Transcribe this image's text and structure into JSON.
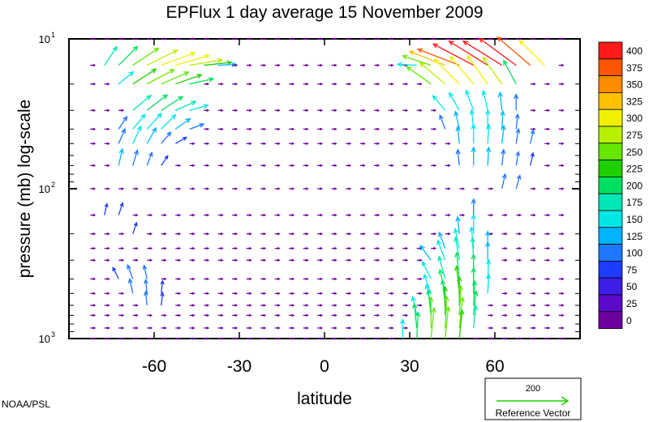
{
  "chart_data": {
    "type": "vector_field",
    "title": "EPFlux  1 day average  15 November  2009",
    "xlabel": "latitude",
    "ylabel": "pressure (mb)  log-scale",
    "xlim": [
      -90,
      90
    ],
    "ylim": [
      1000,
      10
    ],
    "yscale": "log",
    "x_ticks": [
      -60,
      -30,
      0,
      30,
      60
    ],
    "x_tick_labels": [
      "-60",
      "-30",
      "0",
      "30",
      "60"
    ],
    "y_ticks": [
      {
        "base": "10",
        "exp": "1",
        "value": 10
      },
      {
        "base": "10",
        "exp": "2",
        "value": 100
      },
      {
        "base": "10",
        "exp": "3",
        "value": 1000
      }
    ],
    "colorbar": {
      "levels": [
        "400",
        "375",
        "350",
        "325",
        "300",
        "275",
        "250",
        "225",
        "200",
        "175",
        "150",
        "125",
        "100",
        "75",
        "50",
        "25",
        "0"
      ],
      "colors": [
        "#ff1a1a",
        "#ff5500",
        "#ff8c00",
        "#ffc000",
        "#f0f000",
        "#b8f000",
        "#66e600",
        "#1ed000",
        "#00e060",
        "#00e6b4",
        "#00e6e6",
        "#00b4ff",
        "#1e78ff",
        "#1e3cff",
        "#3c1ee6",
        "#5a0ac8",
        "#6e00a0"
      ]
    },
    "reference_vector": {
      "value": "200",
      "label": "Reference Vector",
      "color": "#1ed000"
    },
    "grid_latitudes_start": -87.5,
    "grid_latitudes_step": 5,
    "grid_levels_mb": [
      10,
      15,
      20,
      30,
      40,
      50,
      70,
      100,
      150,
      200,
      250,
      300,
      400,
      500,
      600,
      700,
      850,
      1000
    ],
    "vectors": [
      {
        "lat": -77.5,
        "p": 15,
        "u": 0.4,
        "v": 0.6,
        "mag": 180
      },
      {
        "lat": -72.5,
        "p": 15,
        "u": 0.5,
        "v": 0.5,
        "mag": 220
      },
      {
        "lat": -67.5,
        "p": 15,
        "u": 0.6,
        "v": 0.4,
        "mag": 260
      },
      {
        "lat": -62.5,
        "p": 15,
        "u": 0.7,
        "v": 0.35,
        "mag": 290
      },
      {
        "lat": -57.5,
        "p": 15,
        "u": 0.8,
        "v": 0.3,
        "mag": 310
      },
      {
        "lat": -52.5,
        "p": 15,
        "u": 0.85,
        "v": 0.25,
        "mag": 300
      },
      {
        "lat": -47.5,
        "p": 15,
        "u": 0.9,
        "v": 0.15,
        "mag": 280
      },
      {
        "lat": -42.5,
        "p": 15,
        "u": 0.95,
        "v": 0.1,
        "mag": 230
      },
      {
        "lat": -37.5,
        "p": 15,
        "u": 1.0,
        "v": 0.05,
        "mag": 140
      },
      {
        "lat": -72.5,
        "p": 20,
        "u": 0.6,
        "v": 0.5,
        "mag": 150
      },
      {
        "lat": -67.5,
        "p": 20,
        "u": 0.7,
        "v": 0.45,
        "mag": 230
      },
      {
        "lat": -62.5,
        "p": 20,
        "u": 0.75,
        "v": 0.4,
        "mag": 260
      },
      {
        "lat": -57.5,
        "p": 20,
        "u": 0.8,
        "v": 0.35,
        "mag": 250
      },
      {
        "lat": -52.5,
        "p": 20,
        "u": 0.85,
        "v": 0.3,
        "mag": 230
      },
      {
        "lat": -47.5,
        "p": 20,
        "u": 0.9,
        "v": 0.2,
        "mag": 200
      },
      {
        "lat": -67.5,
        "p": 30,
        "u": 0.6,
        "v": 0.5,
        "mag": 190
      },
      {
        "lat": -62.5,
        "p": 30,
        "u": 0.65,
        "v": 0.5,
        "mag": 210
      },
      {
        "lat": -57.5,
        "p": 30,
        "u": 0.7,
        "v": 0.45,
        "mag": 210
      },
      {
        "lat": -52.5,
        "p": 30,
        "u": 0.8,
        "v": 0.35,
        "mag": 180
      },
      {
        "lat": -47.5,
        "p": 30,
        "u": 0.9,
        "v": 0.25,
        "mag": 150
      },
      {
        "lat": -72.5,
        "p": 40,
        "u": 0.4,
        "v": 0.6,
        "mag": 110
      },
      {
        "lat": -67.5,
        "p": 40,
        "u": 0.5,
        "v": 0.6,
        "mag": 150
      },
      {
        "lat": -62.5,
        "p": 40,
        "u": 0.55,
        "v": 0.6,
        "mag": 170
      },
      {
        "lat": -57.5,
        "p": 40,
        "u": 0.6,
        "v": 0.6,
        "mag": 160
      },
      {
        "lat": -52.5,
        "p": 40,
        "u": 0.7,
        "v": 0.5,
        "mag": 140
      },
      {
        "lat": -47.5,
        "p": 40,
        "u": 0.85,
        "v": 0.3,
        "mag": 110
      },
      {
        "lat": -72.5,
        "p": 50,
        "u": 0.3,
        "v": 0.7,
        "mag": 120
      },
      {
        "lat": -67.5,
        "p": 50,
        "u": 0.35,
        "v": 0.75,
        "mag": 150
      },
      {
        "lat": -62.5,
        "p": 50,
        "u": 0.4,
        "v": 0.7,
        "mag": 140
      },
      {
        "lat": -57.5,
        "p": 50,
        "u": 0.5,
        "v": 0.6,
        "mag": 110
      },
      {
        "lat": -52.5,
        "p": 50,
        "u": 0.7,
        "v": 0.4,
        "mag": 90
      },
      {
        "lat": -72.5,
        "p": 70,
        "u": 0.2,
        "v": 0.9,
        "mag": 130
      },
      {
        "lat": -67.5,
        "p": 70,
        "u": 0.25,
        "v": 0.85,
        "mag": 120
      },
      {
        "lat": -62.5,
        "p": 70,
        "u": 0.3,
        "v": 0.8,
        "mag": 100
      },
      {
        "lat": -57.5,
        "p": 70,
        "u": 0.4,
        "v": 0.6,
        "mag": 80
      },
      {
        "lat": 32.5,
        "p": 15,
        "u": -1.0,
        "v": 0.05,
        "mag": 150
      },
      {
        "lat": 37.5,
        "p": 15,
        "u": -0.9,
        "v": 0.3,
        "mag": 250
      },
      {
        "lat": 42.5,
        "p": 15,
        "u": -0.9,
        "v": 0.35,
        "mag": 330
      },
      {
        "lat": 47.5,
        "p": 15,
        "u": -0.9,
        "v": 0.35,
        "mag": 390
      },
      {
        "lat": 52.5,
        "p": 15,
        "u": -0.85,
        "v": 0.45,
        "mag": 400
      },
      {
        "lat": 57.5,
        "p": 15,
        "u": -0.8,
        "v": 0.5,
        "mag": 400
      },
      {
        "lat": 62.5,
        "p": 15,
        "u": -0.8,
        "v": 0.5,
        "mag": 400
      },
      {
        "lat": 67.5,
        "p": 15,
        "u": -0.75,
        "v": 0.55,
        "mag": 400
      },
      {
        "lat": 72.5,
        "p": 15,
        "u": -0.7,
        "v": 0.6,
        "mag": 380
      },
      {
        "lat": 77.5,
        "p": 15,
        "u": -0.6,
        "v": 0.6,
        "mag": 300
      },
      {
        "lat": 37.5,
        "p": 20,
        "u": -0.7,
        "v": 0.5,
        "mag": 250
      },
      {
        "lat": 42.5,
        "p": 20,
        "u": -0.65,
        "v": 0.55,
        "mag": 280
      },
      {
        "lat": 47.5,
        "p": 20,
        "u": -0.6,
        "v": 0.6,
        "mag": 300
      },
      {
        "lat": 52.5,
        "p": 20,
        "u": -0.55,
        "v": 0.65,
        "mag": 310
      },
      {
        "lat": 57.5,
        "p": 20,
        "u": -0.5,
        "v": 0.7,
        "mag": 300
      },
      {
        "lat": 62.5,
        "p": 20,
        "u": -0.5,
        "v": 0.7,
        "mag": 280
      },
      {
        "lat": 67.5,
        "p": 20,
        "u": -0.4,
        "v": 0.75,
        "mag": 220
      },
      {
        "lat": 42.5,
        "p": 30,
        "u": -0.5,
        "v": 0.6,
        "mag": 150
      },
      {
        "lat": 47.5,
        "p": 30,
        "u": -0.4,
        "v": 0.7,
        "mag": 160
      },
      {
        "lat": 52.5,
        "p": 30,
        "u": -0.3,
        "v": 0.8,
        "mag": 170
      },
      {
        "lat": 57.5,
        "p": 30,
        "u": -0.2,
        "v": 0.85,
        "mag": 160
      },
      {
        "lat": 62.5,
        "p": 30,
        "u": -0.1,
        "v": 0.9,
        "mag": 140
      },
      {
        "lat": 67.5,
        "p": 30,
        "u": 0.0,
        "v": 1.0,
        "mag": 120
      },
      {
        "lat": 42.5,
        "p": 40,
        "u": -0.3,
        "v": 0.8,
        "mag": 110
      },
      {
        "lat": 47.5,
        "p": 40,
        "u": -0.2,
        "v": 0.9,
        "mag": 140
      },
      {
        "lat": 52.5,
        "p": 40,
        "u": -0.1,
        "v": 0.95,
        "mag": 150
      },
      {
        "lat": 57.5,
        "p": 40,
        "u": 0.0,
        "v": 1.0,
        "mag": 150
      },
      {
        "lat": 62.5,
        "p": 40,
        "u": 0.05,
        "v": 1.0,
        "mag": 140
      },
      {
        "lat": 67.5,
        "p": 40,
        "u": 0.1,
        "v": 0.95,
        "mag": 110
      },
      {
        "lat": 47.5,
        "p": 50,
        "u": -0.1,
        "v": 0.95,
        "mag": 130
      },
      {
        "lat": 52.5,
        "p": 50,
        "u": 0.0,
        "v": 1.0,
        "mag": 150
      },
      {
        "lat": 57.5,
        "p": 50,
        "u": 0.05,
        "v": 1.0,
        "mag": 150
      },
      {
        "lat": 62.5,
        "p": 50,
        "u": 0.1,
        "v": 0.95,
        "mag": 140
      },
      {
        "lat": 67.5,
        "p": 50,
        "u": 0.15,
        "v": 0.9,
        "mag": 110
      },
      {
        "lat": 47.5,
        "p": 70,
        "u": -0.1,
        "v": 0.95,
        "mag": 120
      },
      {
        "lat": 52.5,
        "p": 70,
        "u": 0.0,
        "v": 1.0,
        "mag": 140
      },
      {
        "lat": 57.5,
        "p": 70,
        "u": 0.05,
        "v": 1.0,
        "mag": 140
      },
      {
        "lat": 62.5,
        "p": 70,
        "u": 0.1,
        "v": 0.95,
        "mag": 120
      },
      {
        "lat": 67.5,
        "p": 70,
        "u": 0.15,
        "v": 0.9,
        "mag": 100
      },
      {
        "lat": 52.5,
        "p": 150,
        "u": 0.0,
        "v": 1.0,
        "mag": 120
      },
      {
        "lat": 47.5,
        "p": 200,
        "u": -0.1,
        "v": 0.95,
        "mag": 130
      },
      {
        "lat": 52.5,
        "p": 200,
        "u": 0.0,
        "v": 1.0,
        "mag": 150
      },
      {
        "lat": 42.5,
        "p": 250,
        "u": -0.3,
        "v": 0.8,
        "mag": 130
      },
      {
        "lat": 47.5,
        "p": 250,
        "u": -0.2,
        "v": 0.9,
        "mag": 160
      },
      {
        "lat": 52.5,
        "p": 250,
        "u": -0.1,
        "v": 0.95,
        "mag": 170
      },
      {
        "lat": 57.5,
        "p": 250,
        "u": 0.0,
        "v": 1.0,
        "mag": 130
      },
      {
        "lat": 37.5,
        "p": 300,
        "u": -0.5,
        "v": 0.7,
        "mag": 140
      },
      {
        "lat": 42.5,
        "p": 300,
        "u": -0.3,
        "v": 0.8,
        "mag": 170
      },
      {
        "lat": 47.5,
        "p": 300,
        "u": -0.15,
        "v": 0.9,
        "mag": 190
      },
      {
        "lat": 52.5,
        "p": 300,
        "u": -0.05,
        "v": 1.0,
        "mag": 180
      },
      {
        "lat": 57.5,
        "p": 300,
        "u": 0.0,
        "v": 1.0,
        "mag": 140
      },
      {
        "lat": 37.5,
        "p": 400,
        "u": -0.4,
        "v": 0.8,
        "mag": 150
      },
      {
        "lat": 42.5,
        "p": 400,
        "u": -0.25,
        "v": 0.9,
        "mag": 190
      },
      {
        "lat": 47.5,
        "p": 400,
        "u": -0.1,
        "v": 0.95,
        "mag": 220
      },
      {
        "lat": 52.5,
        "p": 400,
        "u": 0.0,
        "v": 1.0,
        "mag": 200
      },
      {
        "lat": 57.5,
        "p": 400,
        "u": 0.05,
        "v": 1.0,
        "mag": 150
      },
      {
        "lat": 37.5,
        "p": 500,
        "u": -0.3,
        "v": 0.85,
        "mag": 160
      },
      {
        "lat": 42.5,
        "p": 500,
        "u": -0.2,
        "v": 0.9,
        "mag": 200
      },
      {
        "lat": 47.5,
        "p": 500,
        "u": -0.1,
        "v": 0.95,
        "mag": 230
      },
      {
        "lat": 52.5,
        "p": 500,
        "u": 0.0,
        "v": 1.0,
        "mag": 210
      },
      {
        "lat": 57.5,
        "p": 500,
        "u": 0.05,
        "v": 1.0,
        "mag": 150
      },
      {
        "lat": 37.5,
        "p": 600,
        "u": -0.2,
        "v": 0.9,
        "mag": 170
      },
      {
        "lat": 42.5,
        "p": 600,
        "u": -0.1,
        "v": 0.95,
        "mag": 210
      },
      {
        "lat": 47.5,
        "p": 600,
        "u": 0.0,
        "v": 1.0,
        "mag": 240
      },
      {
        "lat": 52.5,
        "p": 600,
        "u": 0.05,
        "v": 1.0,
        "mag": 200
      },
      {
        "lat": 32.5,
        "p": 700,
        "u": -0.2,
        "v": 0.9,
        "mag": 150
      },
      {
        "lat": 37.5,
        "p": 700,
        "u": -0.1,
        "v": 0.95,
        "mag": 210
      },
      {
        "lat": 42.5,
        "p": 700,
        "u": 0.0,
        "v": 1.0,
        "mag": 240
      },
      {
        "lat": 47.5,
        "p": 700,
        "u": 0.05,
        "v": 1.0,
        "mag": 250
      },
      {
        "lat": 52.5,
        "p": 700,
        "u": 0.1,
        "v": 0.95,
        "mag": 200
      },
      {
        "lat": 32.5,
        "p": 850,
        "u": -0.1,
        "v": 0.95,
        "mag": 200
      },
      {
        "lat": 37.5,
        "p": 850,
        "u": 0.0,
        "v": 1.0,
        "mag": 260
      },
      {
        "lat": 42.5,
        "p": 850,
        "u": 0.05,
        "v": 1.0,
        "mag": 270
      },
      {
        "lat": 47.5,
        "p": 850,
        "u": 0.1,
        "v": 0.95,
        "mag": 260
      },
      {
        "lat": 52.5,
        "p": 850,
        "u": 0.1,
        "v": 0.95,
        "mag": 180
      },
      {
        "lat": 27.5,
        "p": 1000,
        "u": 0.0,
        "v": 1.0,
        "mag": 150
      },
      {
        "lat": 32.5,
        "p": 1000,
        "u": 0.05,
        "v": 1.0,
        "mag": 220
      },
      {
        "lat": 37.5,
        "p": 1000,
        "u": 0.1,
        "v": 1.0,
        "mag": 260
      },
      {
        "lat": 42.5,
        "p": 1000,
        "u": 0.1,
        "v": 1.0,
        "mag": 270
      },
      {
        "lat": 47.5,
        "p": 1000,
        "u": 0.1,
        "v": 1.0,
        "mag": 240
      },
      {
        "lat": 62.5,
        "p": 100,
        "u": 0.2,
        "v": 0.9,
        "mag": 110
      },
      {
        "lat": 67.5,
        "p": 100,
        "u": 0.25,
        "v": 0.9,
        "mag": 100
      },
      {
        "lat": 72.5,
        "p": 70,
        "u": 0.2,
        "v": 0.9,
        "mag": 90
      },
      {
        "lat": 72.5,
        "p": 50,
        "u": 0.2,
        "v": 0.9,
        "mag": 100
      },
      {
        "lat": -77.5,
        "p": 150,
        "u": 0.2,
        "v": 0.9,
        "mag": 80
      },
      {
        "lat": -72.5,
        "p": 150,
        "u": 0.3,
        "v": 0.9,
        "mag": 90
      },
      {
        "lat": -67.5,
        "p": 200,
        "u": 0.3,
        "v": 0.9,
        "mag": 80
      },
      {
        "lat": -72.5,
        "p": 400,
        "u": -0.4,
        "v": 0.8,
        "mag": 90
      },
      {
        "lat": -67.5,
        "p": 400,
        "u": -0.3,
        "v": 0.8,
        "mag": 110
      },
      {
        "lat": -62.5,
        "p": 400,
        "u": -0.2,
        "v": 0.9,
        "mag": 100
      },
      {
        "lat": -67.5,
        "p": 500,
        "u": -0.2,
        "v": 0.9,
        "mag": 110
      },
      {
        "lat": -62.5,
        "p": 500,
        "u": -0.1,
        "v": 0.95,
        "mag": 100
      },
      {
        "lat": -57.5,
        "p": 500,
        "u": 0.1,
        "v": 0.9,
        "mag": 90
      },
      {
        "lat": -62.5,
        "p": 600,
        "u": -0.1,
        "v": 0.95,
        "mag": 100
      },
      {
        "lat": -57.5,
        "p": 600,
        "u": 0.1,
        "v": 0.9,
        "mag": 90
      }
    ]
  },
  "footer": {
    "credit": "NOAA/PSL"
  }
}
